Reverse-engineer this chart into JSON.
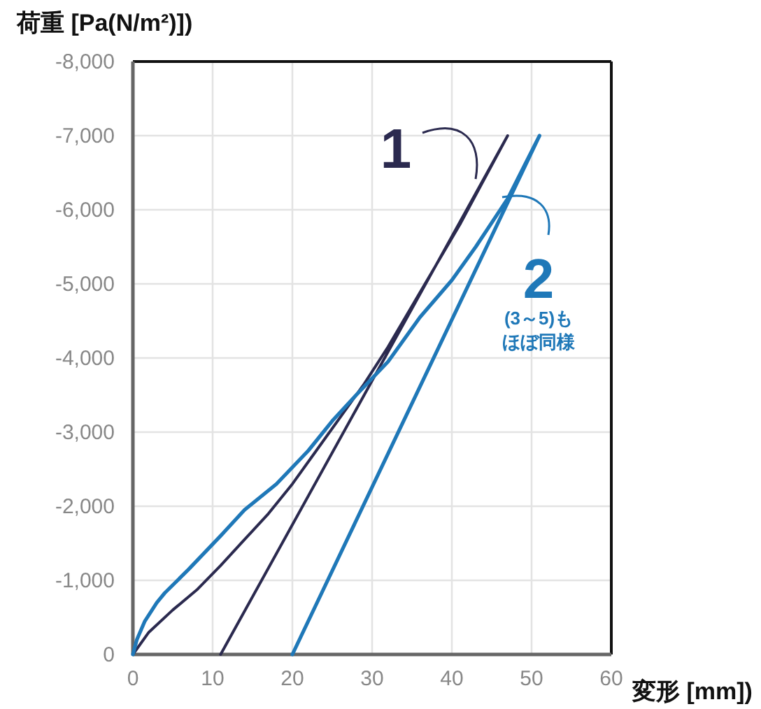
{
  "chart_data": {
    "type": "line",
    "xlabel": "変形 [mm])",
    "ylabel": "荷重 [Pa(N/m²)])",
    "xlim": [
      0,
      60
    ],
    "xticks": [
      0,
      10,
      20,
      30,
      40,
      50,
      60
    ],
    "ylim": [
      0,
      -8000
    ],
    "yticks": [
      {
        "value": 0,
        "label": "0"
      },
      {
        "value": -1000,
        "label": "-1,000"
      },
      {
        "value": -2000,
        "label": "-2,000"
      },
      {
        "value": -3000,
        "label": "-3,000"
      },
      {
        "value": -4000,
        "label": "-4,000"
      },
      {
        "value": -5000,
        "label": "-5,000"
      },
      {
        "value": -6000,
        "label": "-6,000"
      },
      {
        "value": -7000,
        "label": "-7,000"
      },
      {
        "value": -8000,
        "label": "-8,000"
      }
    ],
    "grid": true,
    "marker": "none",
    "series": [
      {
        "name": "1",
        "color": "#2b2a4f",
        "x": [
          0,
          2,
          5,
          8,
          11,
          14,
          17,
          20,
          23,
          26,
          29,
          32,
          35,
          38,
          41,
          44,
          47,
          11
        ],
        "values": [
          0,
          -300,
          -600,
          -870,
          -1200,
          -1550,
          -1900,
          -2300,
          -2750,
          -3200,
          -3650,
          -4150,
          -4700,
          -5250,
          -5800,
          -6400,
          -7000,
          0
        ]
      },
      {
        "name": "2",
        "color": "#1f78b8",
        "x": [
          0,
          0.5,
          1.5,
          3,
          4,
          7,
          11,
          14,
          18,
          22,
          25,
          28,
          32,
          36,
          40,
          43,
          47,
          51,
          20
        ],
        "values": [
          0,
          -200,
          -450,
          -700,
          -830,
          -1150,
          -1600,
          -1950,
          -2300,
          -2750,
          -3150,
          -3500,
          -3950,
          -4550,
          -5050,
          -5500,
          -6150,
          -7000,
          0
        ]
      }
    ],
    "annotations": [
      "(3～5)もほぼ同様"
    ]
  }
}
